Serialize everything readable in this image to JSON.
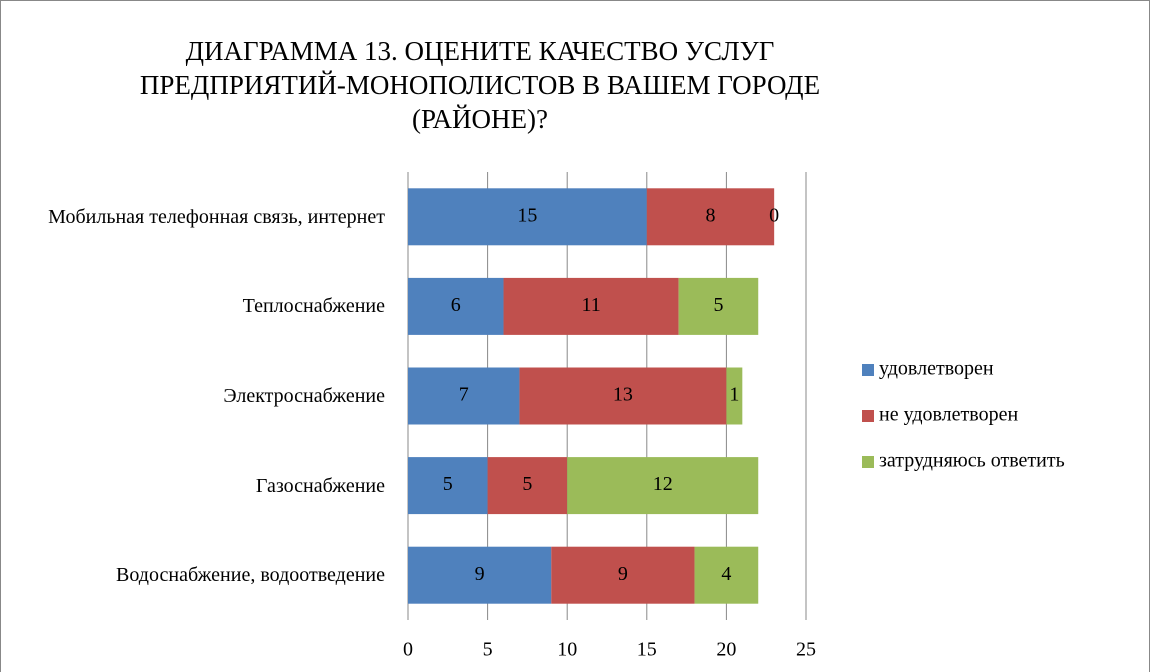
{
  "chart_data": {
    "type": "stacked-barh",
    "title": "ДИАГРАММА 13. ОЦЕНИТЕ КАЧЕСТВО УСЛУГ\nПРЕДПРИЯТИЙ-МОНОПОЛИСТОВ В ВАШЕМ ГОРОДЕ\n(РАЙОНЕ)?",
    "categories": [
      "Мобильная телефонная связь, интернет",
      "Теплоснабжение",
      "Электроснабжение",
      "Газоснабжение",
      "Водоснабжение, водоотведение"
    ],
    "series": [
      {
        "name": "удовлетворен",
        "color": "#4f81bd",
        "values": [
          15,
          6,
          7,
          5,
          9
        ]
      },
      {
        "name": "не удовлетворен",
        "color": "#c0504d",
        "values": [
          8,
          11,
          13,
          5,
          9
        ]
      },
      {
        "name": "затрудняюсь ответить",
        "color": "#9bbb59",
        "values": [
          0,
          5,
          1,
          12,
          4
        ]
      }
    ],
    "xlim": [
      0,
      25
    ],
    "xticks": [
      0,
      5,
      10,
      15,
      20,
      25
    ],
    "grid": true,
    "legend": "right"
  }
}
